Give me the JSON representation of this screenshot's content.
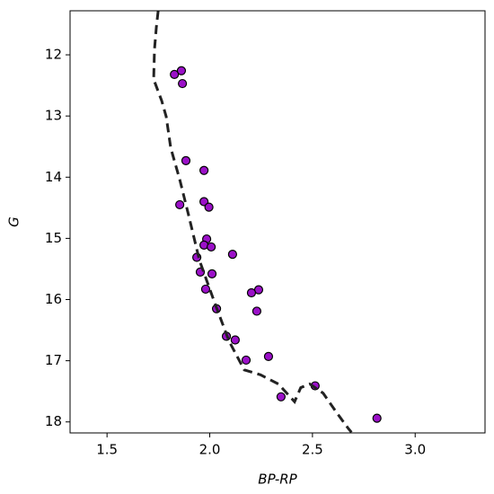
{
  "chart_data": {
    "type": "scatter",
    "xlabel": "BP-RP",
    "ylabel": "G",
    "xlim": [
      1.32,
      3.34
    ],
    "ylim": [
      18.18,
      11.28
    ],
    "xticks": [
      1.5,
      {
        "value": 2,
        "label": "2.0"
      },
      2.5,
      {
        "value": 3,
        "label": "3.0"
      }
    ],
    "yticks": [
      12,
      13,
      14,
      15,
      16,
      17,
      18
    ],
    "series": [
      {
        "color": "#9b10c8",
        "x": [
          1.828,
          1.862,
          1.867,
          1.884,
          1.972,
          1.854,
          1.972,
          1.996,
          1.985,
          1.972,
          2.007,
          2.111,
          1.937,
          1.954,
          2.011,
          1.98,
          2.238,
          2.203,
          2.033,
          2.229,
          2.081,
          2.124,
          2.286,
          2.177,
          2.513,
          2.347,
          2.814
        ],
        "values": [
          12.32,
          12.26,
          12.47,
          13.73,
          13.89,
          14.45,
          14.4,
          14.49,
          15.01,
          15.11,
          15.14,
          15.26,
          15.31,
          15.55,
          15.58,
          15.83,
          15.84,
          15.89,
          16.15,
          16.19,
          16.6,
          16.66,
          16.93,
          16.99,
          17.41,
          17.59,
          17.94
        ]
      },
      {
        "type": "line",
        "color": "#222222",
        "x": [
          1.749,
          1.74,
          1.731,
          1.727,
          1.766,
          1.788,
          1.81,
          1.854,
          1.897,
          1.95,
          2.028,
          2.094,
          2.168,
          2.247,
          2.334,
          2.413,
          2.443,
          2.487,
          2.552,
          2.618,
          2.675,
          2.69
        ],
        "values": [
          11.28,
          11.55,
          11.91,
          12.4,
          12.75,
          13.01,
          13.52,
          14.04,
          14.62,
          15.36,
          16.09,
          16.68,
          17.15,
          17.23,
          17.38,
          17.67,
          17.44,
          17.38,
          17.53,
          17.85,
          18.11,
          18.17
        ]
      }
    ]
  }
}
